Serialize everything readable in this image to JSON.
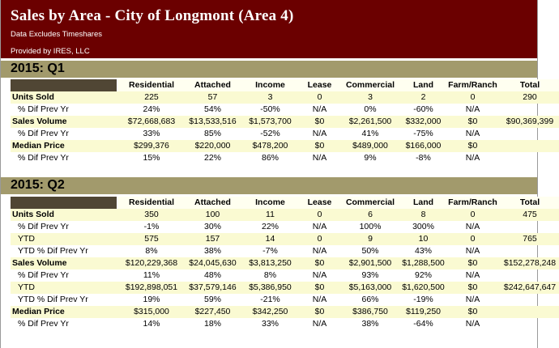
{
  "header": {
    "title": "Sales by Area - City of Longmont (Area 4)",
    "note": "Data Excludes Timeshares",
    "provider": "Provided by IRES, LLC"
  },
  "columns": [
    "Residential",
    "Attached",
    "Income",
    "Lease",
    "Commercial",
    "Land",
    "Farm/Ranch",
    "Total"
  ],
  "q1": {
    "label": "2015: Q1",
    "rows": [
      {
        "label": "Units Sold",
        "cells": [
          "225",
          "57",
          "3",
          "0",
          "3",
          "2",
          "0",
          "290"
        ]
      },
      {
        "label": "% Dif Prev Yr",
        "cells": [
          "24%",
          "54%",
          "-50%",
          "N/A",
          "0%",
          "-60%",
          "N/A",
          ""
        ]
      },
      {
        "label": "Sales Volume",
        "cells": [
          "$72,668,683",
          "$13,533,516",
          "$1,573,700",
          "$0",
          "$2,261,500",
          "$332,000",
          "$0",
          "$90,369,399"
        ]
      },
      {
        "label": "% Dif Prev Yr",
        "cells": [
          "33%",
          "85%",
          "-52%",
          "N/A",
          "41%",
          "-75%",
          "N/A",
          ""
        ]
      },
      {
        "label": "Median Price",
        "cells": [
          "$299,376",
          "$220,000",
          "$478,200",
          "$0",
          "$489,000",
          "$166,000",
          "$0",
          ""
        ]
      },
      {
        "label": "% Dif Prev Yr",
        "cells": [
          "15%",
          "22%",
          "86%",
          "N/A",
          "9%",
          "-8%",
          "N/A",
          ""
        ]
      }
    ]
  },
  "q2": {
    "label": "2015: Q2",
    "rows": [
      {
        "label": "Units Sold",
        "cells": [
          "350",
          "100",
          "11",
          "0",
          "6",
          "8",
          "0",
          "475"
        ]
      },
      {
        "label": "% Dif Prev Yr",
        "cells": [
          "-1%",
          "30%",
          "22%",
          "N/A",
          "100%",
          "300%",
          "N/A",
          ""
        ]
      },
      {
        "label": "YTD",
        "cells": [
          "575",
          "157",
          "14",
          "0",
          "9",
          "10",
          "0",
          "765"
        ]
      },
      {
        "label": "YTD % Dif Prev Yr",
        "cells": [
          "8%",
          "38%",
          "-7%",
          "N/A",
          "50%",
          "43%",
          "N/A",
          ""
        ]
      },
      {
        "label": "Sales Volume",
        "cells": [
          "$120,229,368",
          "$24,045,630",
          "$3,813,250",
          "$0",
          "$2,901,500",
          "$1,288,500",
          "$0",
          "$152,278,248"
        ]
      },
      {
        "label": "% Dif Prev Yr",
        "cells": [
          "11%",
          "48%",
          "8%",
          "N/A",
          "93%",
          "92%",
          "N/A",
          ""
        ]
      },
      {
        "label": "YTD",
        "cells": [
          "$192,898,051",
          "$37,579,146",
          "$5,386,950",
          "$0",
          "$5,163,000",
          "$1,620,500",
          "$0",
          "$242,647,647"
        ]
      },
      {
        "label": "YTD % Dif Prev Yr",
        "cells": [
          "19%",
          "59%",
          "-21%",
          "N/A",
          "66%",
          "-19%",
          "N/A",
          ""
        ]
      },
      {
        "label": "Median Price",
        "cells": [
          "$315,000",
          "$227,450",
          "$342,250",
          "$0",
          "$386,750",
          "$119,250",
          "$0",
          ""
        ]
      },
      {
        "label": "% Dif Prev Yr",
        "cells": [
          "14%",
          "18%",
          "33%",
          "N/A",
          "38%",
          "-64%",
          "N/A",
          ""
        ]
      }
    ]
  }
}
